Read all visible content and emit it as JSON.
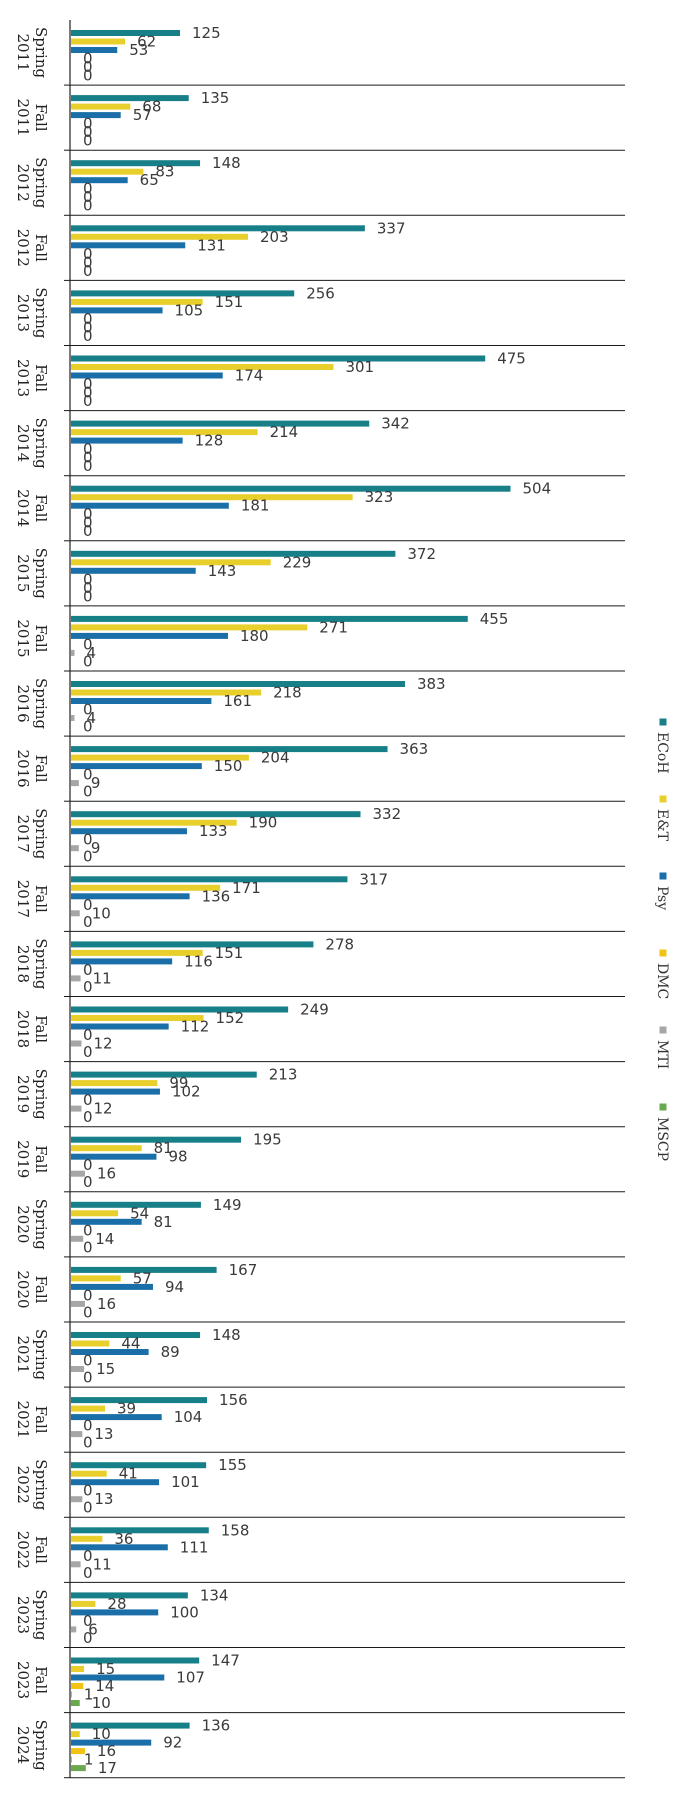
{
  "chart_data": {
    "type": "bar",
    "orientation": "horizontal",
    "title": "",
    "xlabel": "",
    "ylabel": "",
    "xlim": [
      0,
      520
    ],
    "legend_position": "right",
    "categories": [
      "Spring 2011",
      "Fall 2011",
      "Spring 2012",
      "Fall 2012",
      "Spring 2013",
      "Fall 2013",
      "Spring 2014",
      "Fall 2014",
      "Spring 2015",
      "Fall 2015",
      "Spring 2016",
      "Fall 2016",
      "Spring 2017",
      "Fall 2017",
      "Spring 2018",
      "Fall 2018",
      "Spring 2019",
      "Fall 2019",
      "Spring 2020",
      "Fall 2020",
      "Spring 2021",
      "Fall 2021",
      "Spring 2022",
      "Fall 2022",
      "Spring 2023",
      "Fall 2023",
      "Spring 2024"
    ],
    "series": [
      {
        "name": "ECoH",
        "color": "#177f88",
        "values": [
          125,
          135,
          148,
          337,
          256,
          475,
          342,
          504,
          372,
          455,
          383,
          363,
          332,
          317,
          278,
          249,
          213,
          195,
          149,
          167,
          148,
          156,
          155,
          158,
          134,
          147,
          136
        ]
      },
      {
        "name": "E&T",
        "color": "#e8cf2c",
        "values": [
          62,
          68,
          83,
          203,
          151,
          301,
          214,
          323,
          229,
          271,
          218,
          204,
          190,
          171,
          151,
          152,
          99,
          81,
          54,
          57,
          44,
          39,
          41,
          36,
          28,
          15,
          10
        ]
      },
      {
        "name": "Psy",
        "color": "#1a6fa8",
        "values": [
          53,
          57,
          65,
          131,
          105,
          174,
          128,
          181,
          143,
          180,
          161,
          150,
          133,
          136,
          116,
          112,
          102,
          98,
          81,
          94,
          89,
          104,
          101,
          111,
          100,
          107,
          92
        ]
      },
      {
        "name": "DMC",
        "color": "#f3c314",
        "values": [
          0,
          0,
          0,
          0,
          0,
          0,
          0,
          0,
          0,
          0,
          0,
          0,
          0,
          0,
          0,
          0,
          0,
          0,
          0,
          0,
          0,
          0,
          0,
          0,
          0,
          14,
          16
        ]
      },
      {
        "name": "MTI",
        "color": "#a6a6a6",
        "values": [
          0,
          0,
          0,
          0,
          0,
          0,
          0,
          0,
          0,
          4,
          4,
          9,
          9,
          10,
          11,
          12,
          12,
          16,
          14,
          16,
          15,
          13,
          13,
          11,
          6,
          1,
          1
        ]
      },
      {
        "name": "MSCP",
        "color": "#6aa84f",
        "values": [
          0,
          0,
          0,
          0,
          0,
          0,
          0,
          0,
          0,
          0,
          0,
          0,
          0,
          0,
          0,
          0,
          0,
          0,
          0,
          0,
          0,
          0,
          0,
          0,
          0,
          10,
          17
        ]
      }
    ]
  }
}
